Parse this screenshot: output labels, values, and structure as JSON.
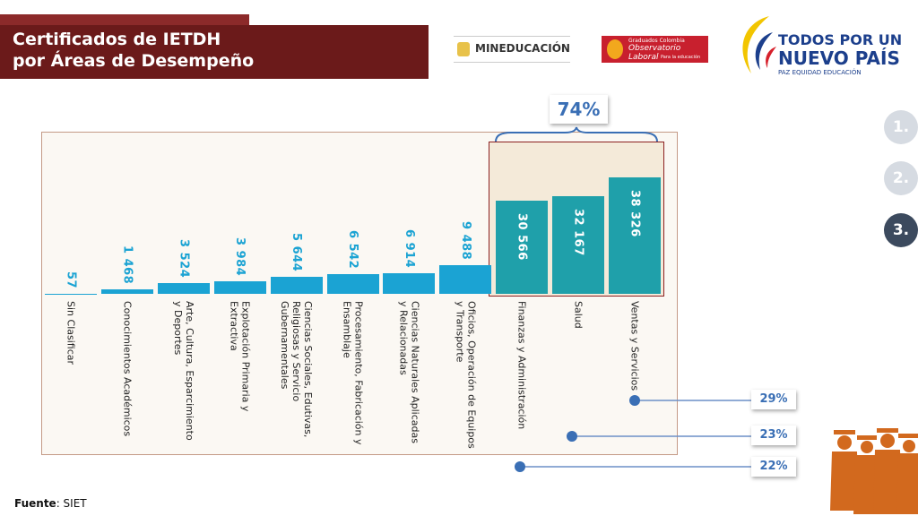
{
  "header": {
    "title_lines": [
      "Certificados de IETDH",
      "por Áreas de Desempeño"
    ]
  },
  "logos": {
    "mineducacion": "MINEDUCACIÓN",
    "observatorio_top": "Graduados Colombia",
    "observatorio": "Observatorio Laboral",
    "observatorio_sub": "Para la educación",
    "gov_line1": "TODOS POR UN",
    "gov_line2": "NUEVO PAÍS",
    "gov_motto": "PAZ  EQUIDAD  EDUCACIÓN"
  },
  "nav": [
    "1.",
    "2.",
    "3."
  ],
  "chart_data": {
    "type": "bar",
    "categories": [
      "Sin Clasificar",
      "Conocimientos Académicos",
      "Arte, Cultura, Esparcimiento y Deportes",
      "Explotación Primaria y Extractiva",
      "Ciencias Sociales, Edutivas, Religiosas y Servicio Gubernamentales",
      "Procesamiento, Fabricación y Ensamblaje",
      "Ciencias Naturales Aplicadas y Relacionadas",
      "Oficios, Operación de Equipos y Transporte",
      "Finanzas y Administración",
      "Salud",
      "Ventas y Servicios"
    ],
    "values": [
      57,
      1468,
      3524,
      3984,
      5644,
      6542,
      6914,
      9488,
      30566,
      32167,
      38326
    ],
    "value_labels": [
      "57",
      "1 468",
      "3 524",
      "3 984",
      "5 644",
      "6 542",
      "6 914",
      "9 488",
      "30 566",
      "32 167",
      "38 326"
    ],
    "colors": [
      "#1ba3d3",
      "#1ba3d3",
      "#1ba3d3",
      "#1ba3d3",
      "#1ba3d3",
      "#1ba3d3",
      "#1ba3d3",
      "#1ba3d3",
      "#1fa0aa",
      "#1fa0aa",
      "#1fa0aa"
    ],
    "annotations": [
      "74%",
      "29%",
      "23%",
      "22%"
    ]
  },
  "source": {
    "label": "Fuente",
    "text": ": SIET"
  }
}
